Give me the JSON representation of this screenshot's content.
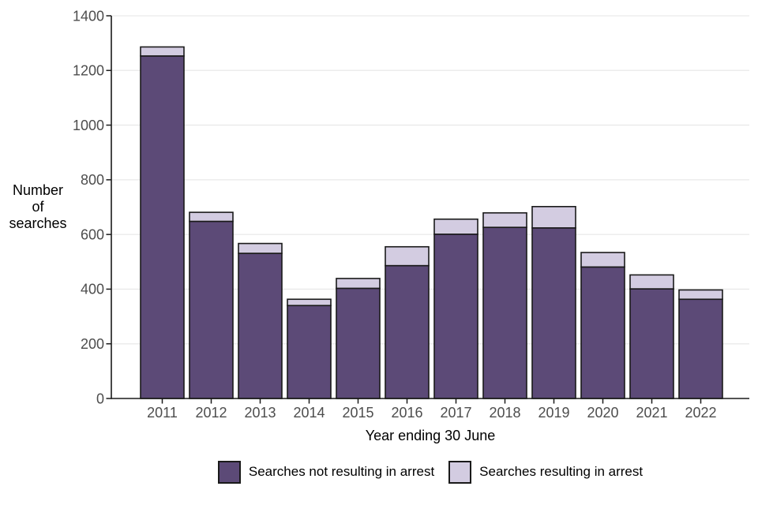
{
  "chart_data": {
    "type": "bar",
    "stacked": true,
    "title": "",
    "xlabel": "Year ending 30 June",
    "ylabel": "Number\nof\nsearches",
    "categories": [
      "2011",
      "2012",
      "2013",
      "2014",
      "2015",
      "2016",
      "2017",
      "2018",
      "2019",
      "2020",
      "2021",
      "2022"
    ],
    "series": [
      {
        "name": "Searches not resulting in arrest",
        "color": "#5c4a77",
        "values": [
          1253,
          648,
          531,
          340,
          403,
          486,
          601,
          626,
          624,
          481,
          401,
          363
        ]
      },
      {
        "name": "Searches resulting in arrest",
        "color": "#d3cce1",
        "values": [
          33,
          33,
          36,
          23,
          36,
          69,
          55,
          53,
          78,
          53,
          51,
          34
        ]
      }
    ],
    "stack_totals": [
      1286,
      681,
      567,
      363,
      439,
      555,
      656,
      679,
      702,
      534,
      452,
      397
    ],
    "ylim": [
      0,
      1400
    ],
    "yticks": [
      0,
      200,
      400,
      600,
      800,
      1000,
      1200,
      1400
    ],
    "grid": true,
    "legend_position": "bottom"
  },
  "style": {
    "background": "#ffffff",
    "bar_stroke": "#1a1a1a",
    "grid_color": "#e9e9e9",
    "axis_color": "#1a1a1a",
    "tick_label_color": "#4d4d4d",
    "title_color": "#000000"
  }
}
